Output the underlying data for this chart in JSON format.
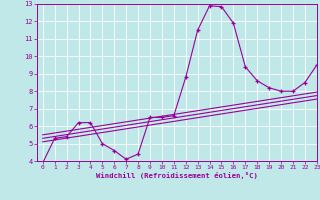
{
  "xlabel": "Windchill (Refroidissement éolien,°C)",
  "xlim": [
    -0.5,
    23
  ],
  "ylim": [
    4,
    13
  ],
  "xticks": [
    0,
    1,
    2,
    3,
    4,
    5,
    6,
    7,
    8,
    9,
    10,
    11,
    12,
    13,
    14,
    15,
    16,
    17,
    18,
    19,
    20,
    21,
    22,
    23
  ],
  "yticks": [
    4,
    5,
    6,
    7,
    8,
    9,
    10,
    11,
    12,
    13
  ],
  "bg_color": "#c0e8e8",
  "line_color": "#990099",
  "line1_x": [
    0,
    1,
    2,
    3,
    4,
    5,
    6,
    7,
    8,
    9,
    10,
    11,
    12,
    13,
    14,
    15,
    16,
    17,
    18,
    19,
    20,
    21,
    22,
    23
  ],
  "line1_y": [
    3.9,
    5.3,
    5.4,
    6.2,
    6.2,
    5.0,
    4.6,
    4.1,
    4.4,
    6.5,
    6.5,
    6.6,
    8.8,
    11.5,
    12.9,
    12.85,
    11.9,
    9.4,
    8.6,
    8.2,
    8.0,
    8.0,
    8.5,
    9.5
  ],
  "line2_x": [
    0,
    23
  ],
  "line2_y": [
    5.1,
    7.55
  ],
  "line3_x": [
    0,
    23
  ],
  "line3_y": [
    5.3,
    7.75
  ],
  "line4_x": [
    0,
    23
  ],
  "line4_y": [
    5.5,
    7.95
  ],
  "marker": "+"
}
